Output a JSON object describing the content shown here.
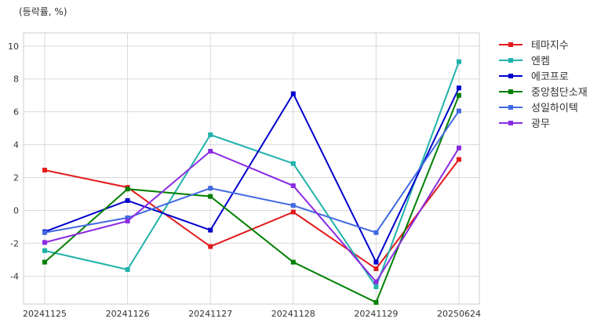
{
  "chart_data": {
    "type": "line",
    "unit_label": "(등락률, %)",
    "title": "",
    "xlabel": "",
    "ylabel": "",
    "categories": [
      "20241125",
      "20241126",
      "20241127",
      "20241128",
      "20241129",
      "20250624"
    ],
    "ylim": [
      -5.7,
      10.8
    ],
    "yticks": [
      -4,
      -2,
      0,
      2,
      4,
      6,
      8,
      10
    ],
    "ytick_labels": [
      "-4",
      "-2",
      "0",
      "2",
      "4",
      "6",
      "8",
      "10"
    ],
    "grid": true,
    "legend_position": "outside-top-right",
    "series": [
      {
        "name": "테마지수",
        "color": "#e41a1c",
        "values": [
          2.45,
          1.4,
          -2.2,
          -0.1,
          -3.55,
          3.1
        ]
      },
      {
        "name": "엔켐",
        "color": "#20b2aa",
        "values": [
          -2.45,
          -3.6,
          4.6,
          2.85,
          -4.65,
          9.05
        ]
      },
      {
        "name": "에코프로",
        "color": "#0000cd",
        "values": [
          -1.3,
          0.6,
          -1.2,
          7.1,
          -3.15,
          7.45
        ]
      },
      {
        "name": "중앙첨단소재",
        "color": "#008000",
        "values": [
          -3.15,
          1.3,
          0.85,
          -3.15,
          -5.6,
          7.0
        ]
      },
      {
        "name": "성일하이텍",
        "color": "#4169e1",
        "values": [
          -1.35,
          -0.45,
          1.35,
          0.3,
          -1.35,
          6.05
        ]
      },
      {
        "name": "광무",
        "color": "#8a2be2",
        "values": [
          -1.95,
          -0.65,
          3.6,
          1.5,
          -4.35,
          3.8
        ]
      }
    ]
  }
}
